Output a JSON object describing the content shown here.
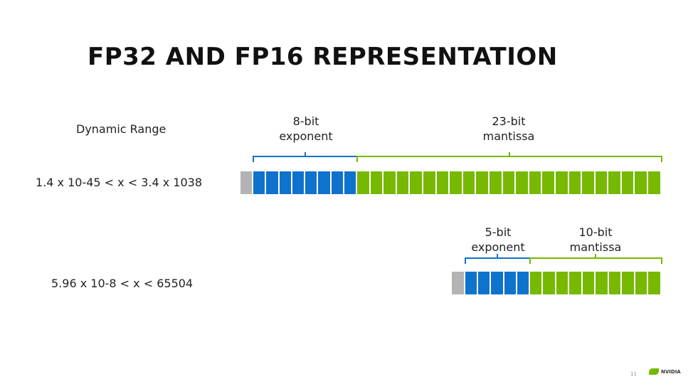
{
  "slide": {
    "title": "FP32 AND FP16 REPRESENTATION",
    "dynamic_range_label": "Dynamic Range",
    "page_number": "11",
    "logo_text": "NVIDIA"
  },
  "colors": {
    "sign": "#b3b3b3",
    "exponent": "#0f72cc",
    "mantissa": "#76b900"
  },
  "formats": [
    {
      "name": "FP32",
      "range": "1.4 x 10-45 < x < 3.4 x 1038",
      "sign_bits": 1,
      "exponent_bits": 8,
      "mantissa_bits": 23,
      "exponent_label": [
        "8-bit",
        "exponent"
      ],
      "mantissa_label": [
        "23-bit",
        "mantissa"
      ]
    },
    {
      "name": "FP16",
      "range": "5.96 x 10-8 < x < 65504",
      "sign_bits": 1,
      "exponent_bits": 5,
      "mantissa_bits": 10,
      "exponent_label": [
        "5-bit",
        "exponent"
      ],
      "mantissa_label": [
        "10-bit",
        "mantissa"
      ]
    }
  ]
}
